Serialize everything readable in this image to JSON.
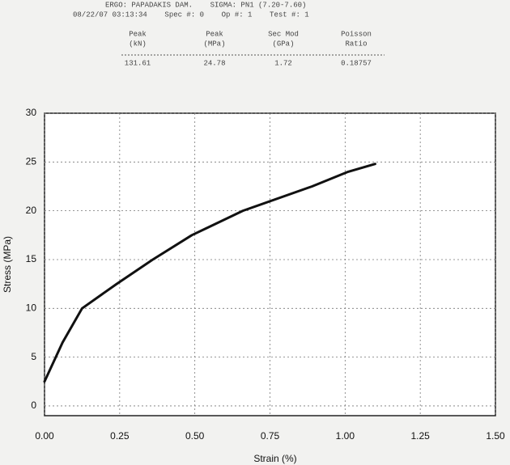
{
  "header": {
    "lines": [
      "ERGO: PAPADAKIS DAM.    SIGMA: PN1 (7.20-7.60)",
      "08/22/07 03:13:34    Spec #: 0    Op #: 1    Test #: 1"
    ],
    "table": {
      "headers": [
        [
          "Peak",
          "(kN)"
        ],
        [
          "Peak",
          "(MPa)"
        ],
        [
          "Sec Mod",
          "(GPa)"
        ],
        [
          "Poisson",
          "Ratio"
        ]
      ],
      "values": [
        "131.61",
        "24.78",
        "1.72",
        "0.18757"
      ]
    }
  },
  "chart_data": {
    "type": "line",
    "xlabel": "Strain (%)",
    "ylabel": "Stress (MPa)",
    "xlim": [
      0,
      1.5
    ],
    "ylim": [
      -1,
      30
    ],
    "xticks": [
      {
        "value": 0,
        "label": "0.00"
      },
      {
        "value": 0.25,
        "label": "0.25"
      },
      {
        "value": 0.5,
        "label": "0.50"
      },
      {
        "value": 0.75,
        "label": "0.75"
      },
      {
        "value": 1,
        "label": "1.00"
      },
      {
        "value": 1.25,
        "label": "1.25"
      },
      {
        "value": 1.5,
        "label": "1.50"
      }
    ],
    "yticks": [
      0,
      5,
      10,
      15,
      20,
      25,
      30
    ],
    "grid": true,
    "x": [
      0,
      0.03,
      0.06,
      0.125,
      0.24,
      0.36,
      0.49,
      0.66,
      0.89,
      1.01,
      1.1
    ],
    "series": [
      {
        "color": "#111111",
        "values": [
          2.5,
          4.5,
          6.5,
          10,
          12.5,
          15,
          17.5,
          20,
          22.5,
          24,
          24.8
        ]
      }
    ]
  }
}
